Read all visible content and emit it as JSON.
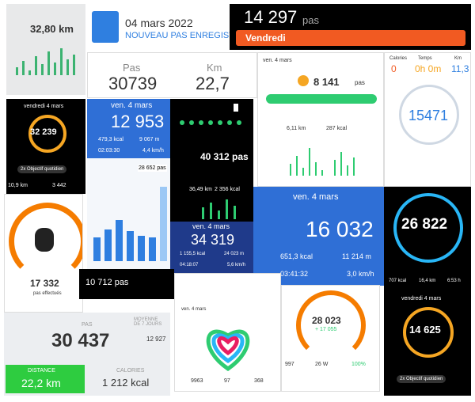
{
  "tiles": {
    "gallery": {
      "distance": "32,80 km"
    },
    "record": {
      "date": "04 mars 2022",
      "label": "NOUVEAU PAS ENREGISTR"
    },
    "dark_top": {
      "steps": "14 297",
      "unit": "pas",
      "day": "Vendredi"
    },
    "pas_km": {
      "pas_label": "Pas",
      "pas": "30739",
      "km_label": "Km",
      "km": "22,7"
    },
    "ring_orange": {
      "date": "vendredi 4 mars",
      "steps": "32 239",
      "goal": "2x Objectif quotidien",
      "km": "10,9 km",
      "other": "3 442"
    },
    "blue_a": {
      "date": "ven. 4 mars",
      "steps": "12 953",
      "kcal": "479,3 kcal",
      "meters": "9 067 m",
      "time": "02:03:30",
      "speed": "4,4 km/h"
    },
    "green_bar": {
      "date": "ven. 4 mars",
      "steps": "8 141",
      "unit": "pas",
      "km": "6,11 km",
      "kcal": "287 kcal"
    },
    "ring_blue": {
      "cal_label": "Calories",
      "cal": "0",
      "time_label": "Temps",
      "time": "0h 0m",
      "km_label": "Km",
      "km": "11,3",
      "steps": "15471"
    },
    "green_dark": {
      "steps": "40 312 pas",
      "km": "36,49 km",
      "kcal": "2 356 kcal"
    },
    "bar_chart": {
      "steps": "28 652 pas"
    },
    "gauge": {
      "steps": "17 332",
      "label": "pas effectués"
    },
    "blue_b": {
      "date": "ven. 4 mars",
      "steps": "16 032",
      "kcal": "651,3 kcal",
      "meters": "11 214 m",
      "time": "03:41:32",
      "speed": "3,0 km/h"
    },
    "ring_cyan": {
      "steps": "26 822",
      "kcal": "707 kcal",
      "km": "16,4 km",
      "hours": "6:53 h"
    },
    "navy": {
      "date": "ven. 4 mars",
      "steps": "34 319",
      "kcal": "1 155,5 kcal",
      "meters": "24 023 m",
      "time": "04:18:07",
      "speed": "5,6 km/h"
    },
    "small_dark": {
      "steps": "10 712 pas"
    },
    "heart": {
      "date": "ven. 4 mars",
      "steps": "9963",
      "minutes": "97",
      "kcal": "368"
    },
    "orange_arc": {
      "steps": "28 023",
      "delta": "+ 17 055",
      "floors": "997",
      "watts": "26 W",
      "percent": "100%"
    },
    "ring_orange_b": {
      "date": "vendredi 4 mars",
      "steps": "14 625",
      "goal": "2x Objectif quotidien"
    },
    "summary": {
      "pas_label": "PAS",
      "pas": "30 437",
      "avg_label": "MOYENNE DE 7 JOURS",
      "avg": "12 927",
      "distance_label": "DISTANCE",
      "distance": "22,2 km",
      "calories_label": "CALORIES",
      "calories": "1 212 kcal"
    }
  }
}
